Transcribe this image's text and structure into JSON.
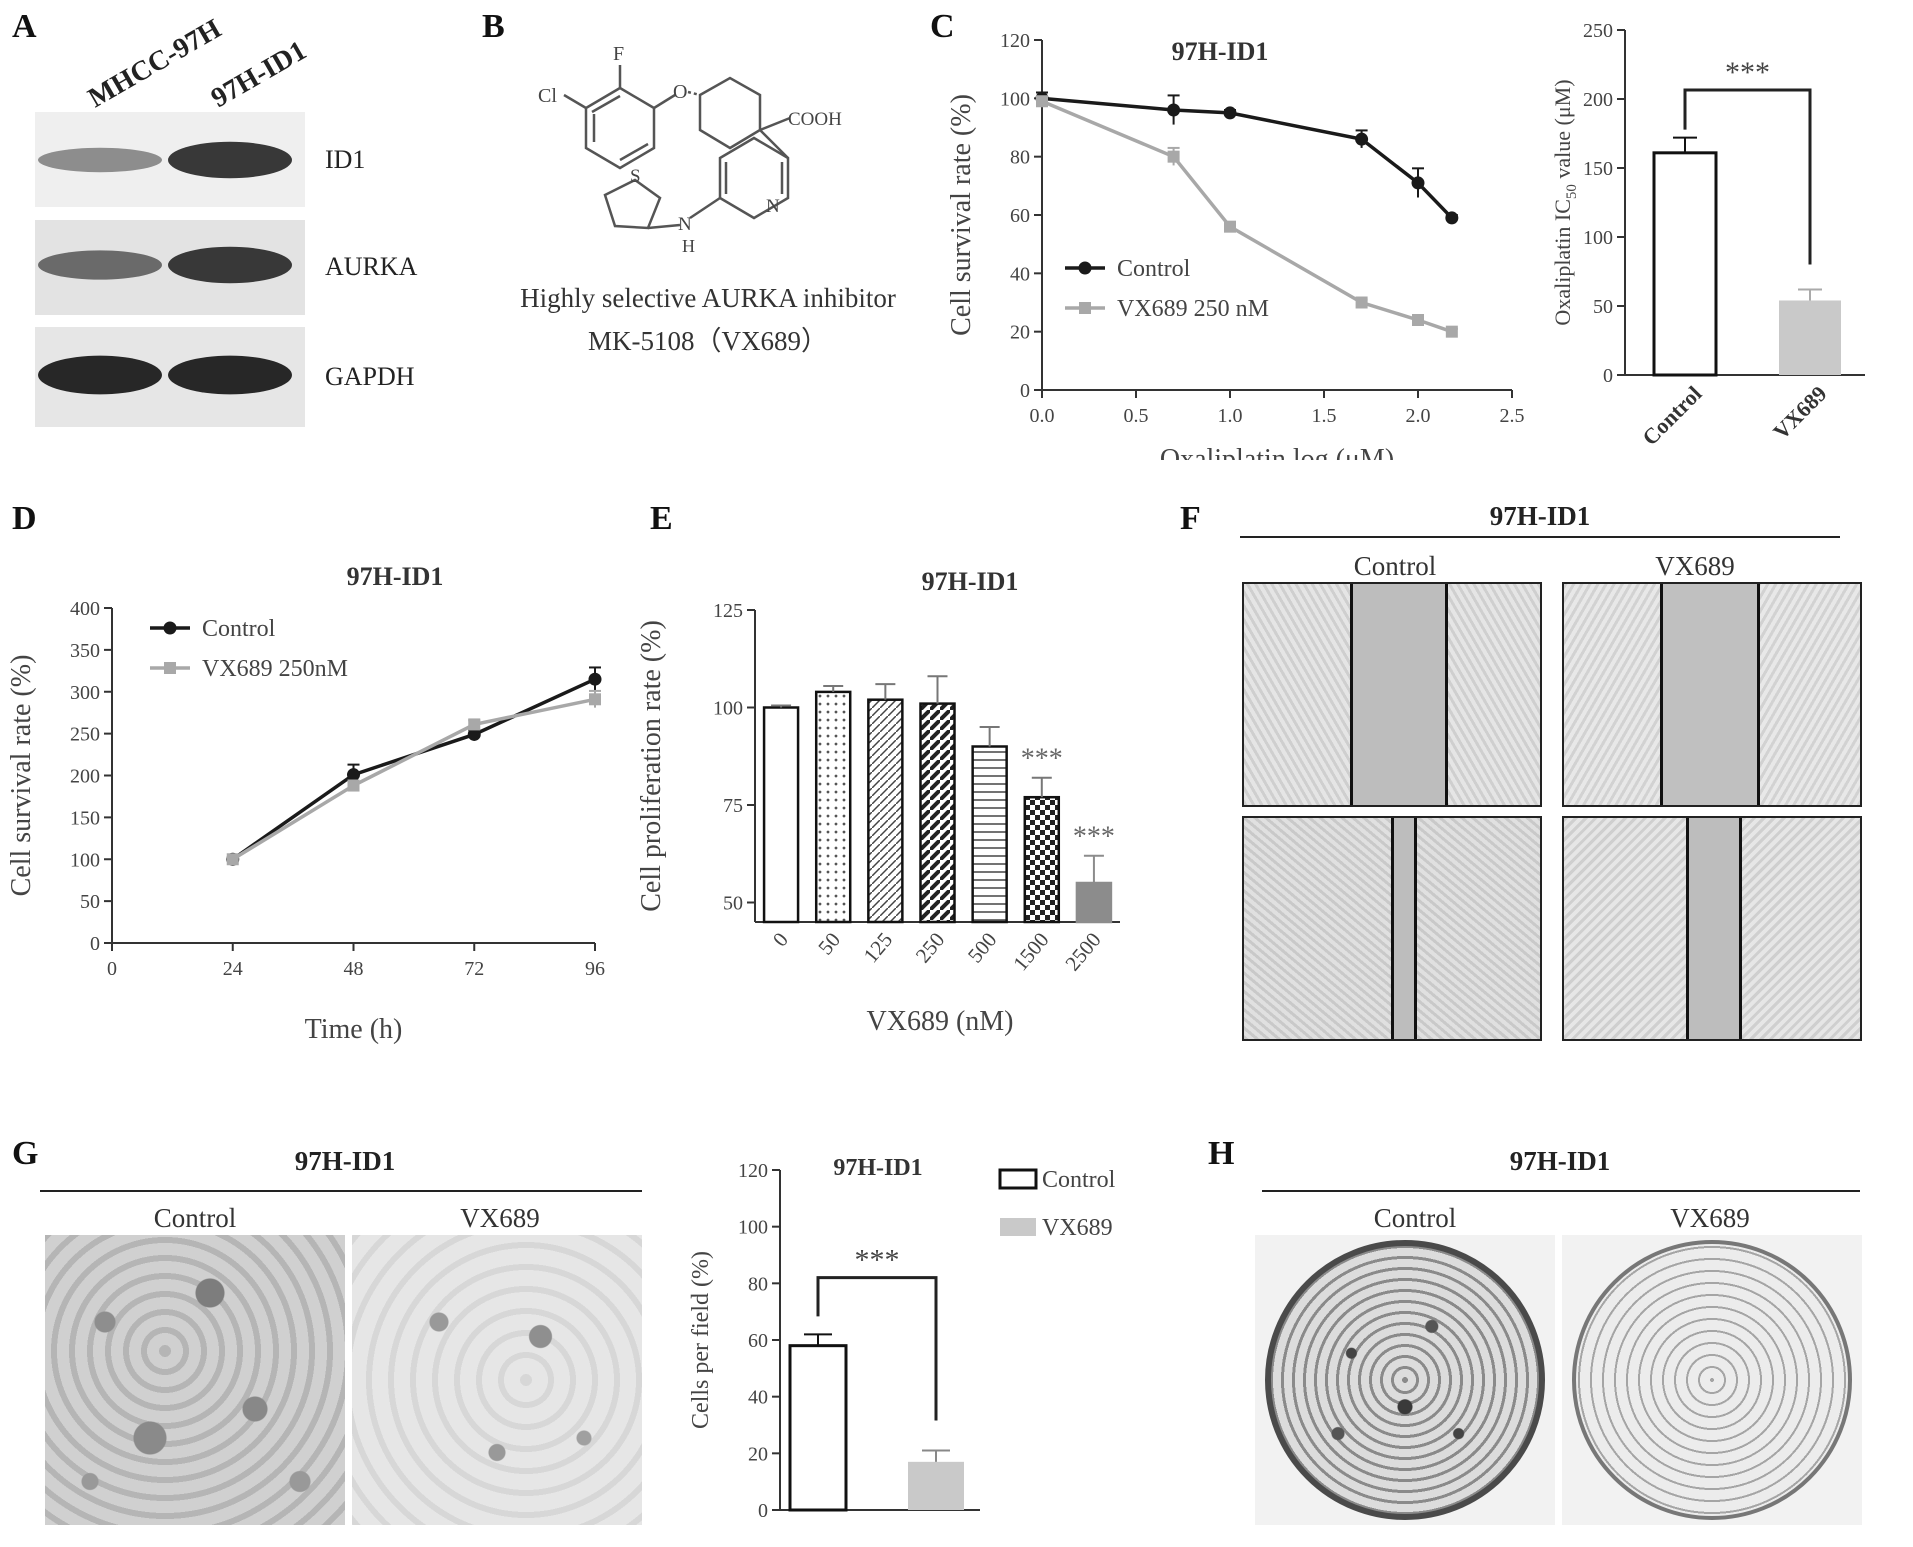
{
  "panels": {
    "A": {
      "letter": "A",
      "lane_labels": [
        "MHCC-97H",
        "97H-ID1"
      ],
      "band_labels": [
        "ID1",
        "AURKA",
        "GAPDH"
      ],
      "bands": [
        {
          "name": "ID1",
          "lane1": 0.35,
          "lane2": 0.85
        },
        {
          "name": "AURKA",
          "lane1": 0.55,
          "lane2": 0.85
        },
        {
          "name": "GAPDH",
          "lane1": 0.95,
          "lane2": 0.95
        }
      ]
    },
    "B": {
      "letter": "B",
      "caption_line1": "Highly selective AURKA inhibitor",
      "caption_line2": "MK-5108（VX689）",
      "atom_labels": [
        "Cl",
        "F",
        "O",
        "COOH",
        "S",
        "N",
        "N",
        "H"
      ]
    },
    "C": {
      "letter": "C"
    },
    "D": {
      "letter": "D"
    },
    "E": {
      "letter": "E"
    },
    "F": {
      "letter": "F",
      "header": "97H-ID1",
      "col_labels": [
        "Control",
        "VX689"
      ]
    },
    "G": {
      "letter": "G",
      "header": "97H-ID1",
      "col_labels": [
        "Control",
        "VX689"
      ]
    },
    "H": {
      "letter": "H",
      "header": "97H-ID1",
      "col_labels": [
        "Control",
        "VX689"
      ]
    }
  },
  "chart_data": [
    {
      "id": "C-left",
      "type": "line",
      "title": "97H-ID1",
      "xlabel": "Oxaliplatin log (μM)",
      "ylabel": "Cell survival rate (%)",
      "xlim": [
        0.0,
        2.5
      ],
      "ylim": [
        0,
        120
      ],
      "xticks": [
        "0.0",
        "0.5",
        "1.0",
        "1.5",
        "2.0",
        "2.5"
      ],
      "yticks": [
        "0",
        "20",
        "40",
        "60",
        "80",
        "100",
        "120"
      ],
      "legend": "bottom-left",
      "series": [
        {
          "name": "Control",
          "color": "#1a1a1a",
          "marker": "circle",
          "x": [
            0.0,
            0.7,
            1.0,
            1.7,
            2.0,
            2.18
          ],
          "y": [
            100,
            96,
            95,
            86,
            71,
            59
          ],
          "err": [
            2,
            5,
            1,
            3,
            5,
            1
          ]
        },
        {
          "name": "VX689 250 nM",
          "color": "#a8a8a8",
          "marker": "square",
          "x": [
            0.0,
            0.7,
            1.0,
            1.7,
            2.0,
            2.18
          ],
          "y": [
            99,
            80,
            56,
            30,
            24,
            20
          ],
          "err": [
            1,
            3,
            1,
            1,
            1,
            1
          ]
        }
      ]
    },
    {
      "id": "C-right",
      "type": "bar",
      "title": "",
      "ylabel_main": "Oxaliplatin IC",
      "ylabel_sub": "50",
      "ylabel_tail": " value (μM)",
      "ylim": [
        0,
        250
      ],
      "yticks": [
        "0",
        "50",
        "100",
        "150",
        "200",
        "250"
      ],
      "categories": [
        "Control",
        "VX689"
      ],
      "values": [
        161,
        54
      ],
      "err": [
        11,
        8
      ],
      "colors": [
        "#ffffff",
        "#c9c9c9"
      ],
      "significance": "***"
    },
    {
      "id": "D",
      "type": "line",
      "title": "97H-ID1",
      "xlabel": "Time (h)",
      "ylabel": "Cell survival rate (%)",
      "xlim": [
        0,
        96
      ],
      "ylim": [
        0,
        400
      ],
      "xticks": [
        "0",
        "24",
        "48",
        "72",
        "96"
      ],
      "yticks": [
        "0",
        "50",
        "100",
        "150",
        "200",
        "250",
        "300",
        "350",
        "400"
      ],
      "legend": "top-left",
      "series": [
        {
          "name": "Control",
          "color": "#1a1a1a",
          "marker": "circle",
          "x": [
            24,
            48,
            72,
            96
          ],
          "y": [
            100,
            201,
            249,
            315
          ],
          "err": [
            2,
            12,
            5,
            14
          ]
        },
        {
          "name": "VX689 250nM",
          "color": "#a8a8a8",
          "marker": "square",
          "x": [
            24,
            48,
            72,
            96
          ],
          "y": [
            100,
            188,
            261,
            291
          ],
          "err": [
            2,
            6,
            5,
            10
          ]
        }
      ]
    },
    {
      "id": "E",
      "type": "bar",
      "title": "97H-ID1",
      "xlabel": "VX689 (nM)",
      "ylabel": "Cell proliferation rate (%)",
      "ylim": [
        45,
        125
      ],
      "yticks": [
        "50",
        "75",
        "100",
        "125"
      ],
      "categories": [
        "0",
        "50",
        "125",
        "250",
        "500",
        "1500",
        "2500"
      ],
      "values": [
        100,
        104,
        102,
        101,
        90,
        77,
        55
      ],
      "err": [
        0.5,
        1.5,
        4,
        7,
        5,
        5,
        7
      ],
      "patterns": [
        "open",
        "dots",
        "diag-thin",
        "diag-thick",
        "horiz",
        "checker",
        "solid"
      ],
      "significance": [
        "",
        "",
        "",
        "",
        "",
        "***",
        "***"
      ]
    },
    {
      "id": "G-chart",
      "type": "bar",
      "title": "97H-ID1",
      "ylabel": "Cells per field  (%)",
      "ylim": [
        0,
        120
      ],
      "yticks": [
        "0",
        "20",
        "40",
        "60",
        "80",
        "100",
        "120"
      ],
      "categories": [
        "Control",
        "VX689"
      ],
      "legend_labels": [
        "Control",
        "VX689"
      ],
      "values": [
        58,
        17
      ],
      "err": [
        4,
        4
      ],
      "colors": [
        "#ffffff",
        "#c9c9c9"
      ],
      "significance": "***"
    }
  ]
}
